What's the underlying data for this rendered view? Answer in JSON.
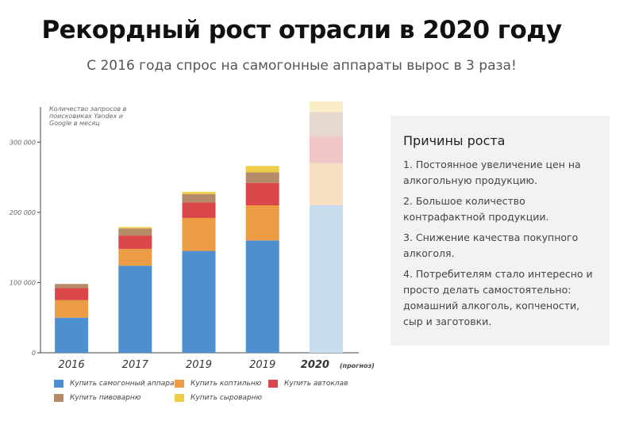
{
  "header": {
    "title": "Рекордный рост отрасли в 2020 году",
    "subtitle": "С 2016 года спрос на самогонные аппараты вырос в 3 раза!"
  },
  "chart_data": {
    "type": "bar",
    "stacked": true,
    "title": "",
    "ylabel": "Количество запросов в поисковиках Yandex и Google в месяц",
    "xlabel": "",
    "categories": [
      "2016",
      "2017",
      "2019",
      "2019",
      "2020"
    ],
    "category_note": [
      "",
      "",
      "",
      "",
      "(прогноз)"
    ],
    "forecast_index": 4,
    "ylim": [
      0,
      350000
    ],
    "yticks": [
      0,
      100000,
      200000,
      300000
    ],
    "ytick_labels": [
      "0",
      "100 000",
      "200 000",
      "300 000"
    ],
    "grid": false,
    "legend_position": "bottom",
    "series": [
      {
        "name": "Купить самогонный аппарат",
        "color": "#4e8fcf",
        "values": [
          50000,
          124000,
          145000,
          160000,
          210000
        ]
      },
      {
        "name": "Купить коптильню",
        "color": "#eb9c45",
        "values": [
          25000,
          24000,
          47000,
          50000,
          60000
        ]
      },
      {
        "name": "Купить автоклав",
        "color": "#d9474a",
        "values": [
          17000,
          19000,
          22000,
          32000,
          38000
        ]
      },
      {
        "name": "Купить пивоварню",
        "color": "#b58a68",
        "values": [
          6000,
          10000,
          12000,
          15000,
          35000
        ]
      },
      {
        "name": "Купить сыроварню",
        "color": "#eccd45",
        "values": [
          0,
          2000,
          3000,
          9000,
          15000
        ]
      }
    ],
    "forecast_colors": [
      "#c6dcef",
      "#f7dfc4",
      "#f1c6c6",
      "#e6d8cd",
      "#f8edc4"
    ]
  },
  "panel": {
    "title": "Причины роста",
    "reasons": [
      "1. Постоянное увеличение цен на алкогольную продукцию.",
      "2. Большое количество контрафактной продукции.",
      "3. Снижение качества покупного алкоголя.",
      "4. Потребителям стало интересно и просто делать самостоятельно: домашний алкоголь, копчености, сыр и заготовки."
    ]
  }
}
